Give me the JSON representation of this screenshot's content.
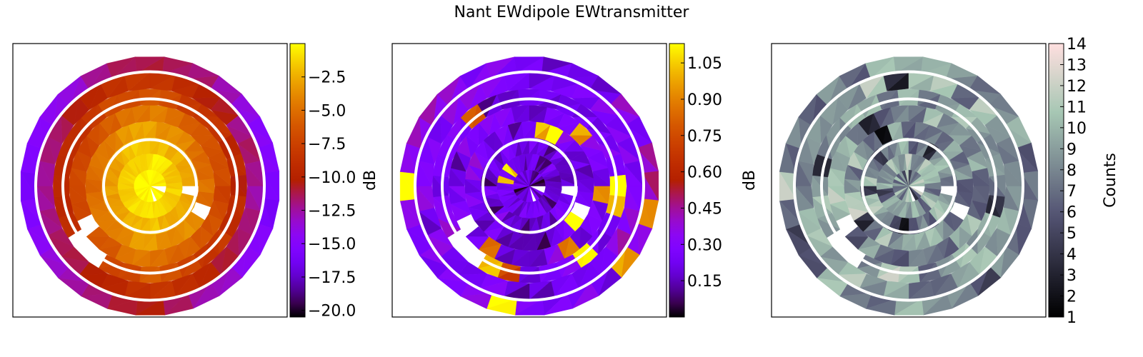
{
  "figure": {
    "title": "Nant EWdipole EWtransmitter"
  },
  "chart_data": [
    {
      "type": "heatmap",
      "panel": "left",
      "colormap": "gnuplot",
      "colorbar_label": "dB",
      "colorbar_range": [
        -20.5,
        0.0
      ],
      "colorbar_ticks": [
        -2.5,
        -5.0,
        -7.5,
        -10.0,
        -12.5,
        -15.0,
        -17.5,
        -20.0
      ],
      "colorbar_tick_labels": [
        "−2.5",
        "−5.0",
        "−7.5",
        "−10.0",
        "−12.5",
        "−15.0",
        "−17.5",
        "−20.0"
      ],
      "overlay": "three concentric white circles",
      "grid": false,
      "axes_ticks": "none"
    },
    {
      "type": "heatmap",
      "panel": "middle",
      "colormap": "gnuplot",
      "colorbar_label": "dB",
      "colorbar_range": [
        0.0,
        1.13
      ],
      "colorbar_ticks": [
        1.05,
        0.9,
        0.75,
        0.6,
        0.45,
        0.3,
        0.15
      ],
      "colorbar_tick_labels": [
        "1.05",
        "0.90",
        "0.75",
        "0.60",
        "0.45",
        "0.30",
        "0.15"
      ],
      "overlay": "three concentric white circles",
      "grid": false,
      "axes_ticks": "none"
    },
    {
      "type": "heatmap",
      "panel": "right",
      "colormap": "bone",
      "colorbar_label": "Counts",
      "colorbar_range": [
        1,
        14
      ],
      "colorbar_ticks": [
        14,
        13,
        12,
        11,
        10,
        9,
        8,
        7,
        6,
        5,
        4,
        3,
        2,
        1
      ],
      "colorbar_tick_labels": [
        "14",
        "13",
        "12",
        "11",
        "10",
        "9",
        "8",
        "7",
        "6",
        "5",
        "4",
        "3",
        "2",
        "1"
      ],
      "overlay": "three concentric white circles",
      "grid": false,
      "axes_ticks": "none"
    }
  ]
}
